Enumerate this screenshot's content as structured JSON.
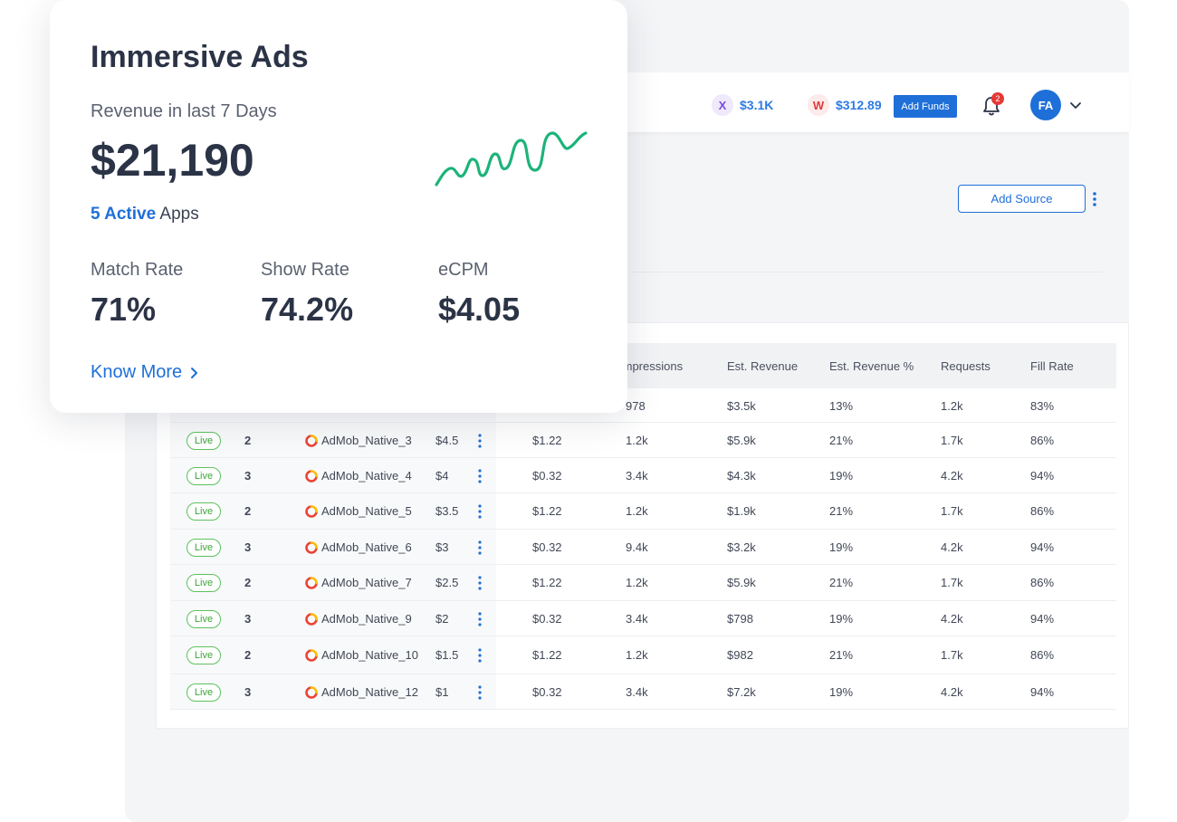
{
  "card": {
    "title": "Immersive Ads",
    "subtitle": "Revenue in last 7 Days",
    "revenue": "$21,190",
    "active_count": "5 Active",
    "active_suffix": "Apps",
    "metrics": [
      {
        "label": "Match Rate",
        "value": "71%"
      },
      {
        "label": "Show Rate",
        "value": "74.2%"
      },
      {
        "label": "eCPM",
        "value": "$4.05"
      }
    ],
    "know_more": "Know More",
    "sparkline_color": "#1db37a"
  },
  "topbar": {
    "wallet_x": {
      "icon": "X",
      "amount": "$3.1K"
    },
    "wallet_w": {
      "icon": "W",
      "amount": "$312.89"
    },
    "add_funds": "Add Funds",
    "notification_count": "2",
    "avatar_initials": "FA"
  },
  "toolbar": {
    "add_source": "Add Source"
  },
  "table": {
    "headers": [
      "Impressions",
      "Est. Revenue",
      "Est. Revenue %",
      "Requests",
      "Fill Rate"
    ],
    "first_row_partial": {
      "impressions": "978",
      "est_revenue": "$3.5k",
      "est_revenue_pct": "13%",
      "requests": "1.2k",
      "fill_rate": "83%"
    },
    "rows": [
      {
        "status": "Live",
        "priority": "2",
        "name": "AdMob_Native_3",
        "floor": "$4.5",
        "ecpm": "$1.22",
        "impressions": "1.2k",
        "est_revenue": "$5.9k",
        "est_revenue_pct": "21%",
        "requests": "1.7k",
        "fill_rate": "86%"
      },
      {
        "status": "Live",
        "priority": "3",
        "name": "AdMob_Native_4",
        "floor": "$4",
        "ecpm": "$0.32",
        "impressions": "3.4k",
        "est_revenue": "$4.3k",
        "est_revenue_pct": "19%",
        "requests": "4.2k",
        "fill_rate": "94%"
      },
      {
        "status": "Live",
        "priority": "2",
        "name": "AdMob_Native_5",
        "floor": "$3.5",
        "ecpm": "$1.22",
        "impressions": "1.2k",
        "est_revenue": "$1.9k",
        "est_revenue_pct": "21%",
        "requests": "1.7k",
        "fill_rate": "86%"
      },
      {
        "status": "Live",
        "priority": "3",
        "name": "AdMob_Native_6",
        "floor": "$3",
        "ecpm": "$0.32",
        "impressions": "9.4k",
        "est_revenue": "$3.2k",
        "est_revenue_pct": "19%",
        "requests": "4.2k",
        "fill_rate": "94%"
      },
      {
        "status": "Live",
        "priority": "2",
        "name": "AdMob_Native_7",
        "floor": "$2.5",
        "ecpm": "$1.22",
        "impressions": "1.2k",
        "est_revenue": "$5.9k",
        "est_revenue_pct": "21%",
        "requests": "1.7k",
        "fill_rate": "86%"
      },
      {
        "status": "Live",
        "priority": "3",
        "name": "AdMob_Native_9",
        "floor": "$2",
        "ecpm": "$0.32",
        "impressions": "3.4k",
        "est_revenue": "$798",
        "est_revenue_pct": "19%",
        "requests": "4.2k",
        "fill_rate": "94%"
      },
      {
        "status": "Live",
        "priority": "2",
        "name": "AdMob_Native_10",
        "floor": "$1.5",
        "ecpm": "$1.22",
        "impressions": "1.2k",
        "est_revenue": "$982",
        "est_revenue_pct": "21%",
        "requests": "1.7k",
        "fill_rate": "86%"
      },
      {
        "status": "Live",
        "priority": "3",
        "name": "AdMob_Native_12",
        "floor": "$1",
        "ecpm": "$0.32",
        "impressions": "3.4k",
        "est_revenue": "$7.2k",
        "est_revenue_pct": "19%",
        "requests": "4.2k",
        "fill_rate": "94%"
      }
    ]
  }
}
